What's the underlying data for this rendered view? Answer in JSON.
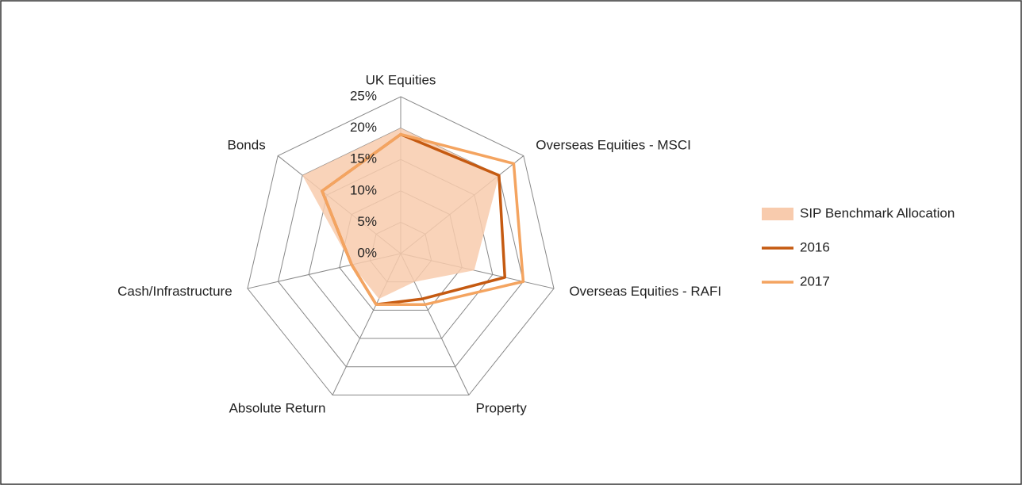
{
  "chart_data": {
    "type": "radar",
    "categories": [
      "UK Equities",
      "Overseas Equities - MSCI",
      "Overseas Equities - RAFI",
      "Property",
      "Absolute Return",
      "Cash/Infrastructure",
      "Bonds"
    ],
    "rlim": [
      0,
      25
    ],
    "rticks": [
      {
        "value": 0,
        "label": "0%"
      },
      {
        "value": 5,
        "label": "5%"
      },
      {
        "value": 10,
        "label": "10%"
      },
      {
        "value": 15,
        "label": "15%"
      },
      {
        "value": 20,
        "label": "20%"
      },
      {
        "value": 25,
        "label": "25%"
      }
    ],
    "series": [
      {
        "name": "SIP Benchmark Allocation",
        "color": "#f8cbad",
        "values": [
          20,
          20,
          12,
          5,
          8,
          8,
          20
        ]
      },
      {
        "name": "2016",
        "color": "#c55a11",
        "values": [
          19,
          20,
          17,
          8,
          9,
          8,
          16
        ]
      },
      {
        "name": "2017",
        "color": "#f4a460",
        "values": [
          19,
          23,
          20,
          9,
          9,
          8,
          16
        ]
      }
    ]
  }
}
